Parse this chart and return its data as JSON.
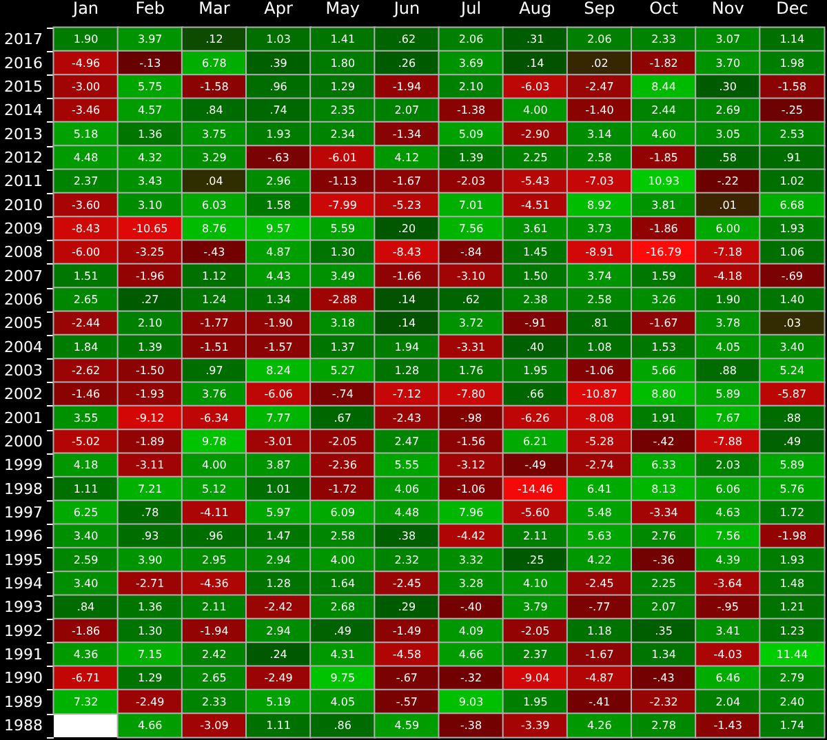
{
  "chart_data": {
    "type": "heatmap",
    "categories": [
      "Jan",
      "Feb",
      "Mar",
      "Apr",
      "May",
      "Jun",
      "Jul",
      "Aug",
      "Sep",
      "Oct",
      "Nov",
      "Dec"
    ],
    "y_categories": [
      "2017",
      "2016",
      "2015",
      "2014",
      "2013",
      "2012",
      "2011",
      "2010",
      "2009",
      "2008",
      "2007",
      "2006",
      "2005",
      "2004",
      "2003",
      "2002",
      "2001",
      "2000",
      "1999",
      "1998",
      "1997",
      "1996",
      "1995",
      "1994",
      "1993",
      "1992",
      "1991",
      "1990",
      "1989",
      "1988"
    ],
    "cells": [
      [
        1.9,
        3.97,
        0.12,
        1.03,
        1.41,
        0.62,
        2.06,
        0.31,
        2.06,
        2.33,
        3.07,
        1.14
      ],
      [
        -4.96,
        -0.13,
        6.78,
        0.39,
        1.8,
        0.26,
        3.69,
        0.14,
        0.02,
        -1.82,
        3.7,
        1.98
      ],
      [
        -3.0,
        5.75,
        -1.58,
        0.96,
        1.29,
        -1.94,
        2.1,
        -6.03,
        -2.47,
        8.44,
        0.3,
        -1.58
      ],
      [
        -3.46,
        4.57,
        0.84,
        0.74,
        2.35,
        2.07,
        -1.38,
        4.0,
        -1.4,
        2.44,
        2.69,
        -0.25
      ],
      [
        5.18,
        1.36,
        3.75,
        1.93,
        2.34,
        -1.34,
        5.09,
        -2.9,
        3.14,
        4.6,
        3.05,
        2.53
      ],
      [
        4.48,
        4.32,
        3.29,
        -0.63,
        -6.01,
        4.12,
        1.39,
        2.25,
        2.58,
        -1.85,
        0.58,
        0.91
      ],
      [
        2.37,
        3.43,
        0.04,
        2.96,
        -1.13,
        -1.67,
        -2.03,
        -5.43,
        -7.03,
        10.93,
        -0.22,
        1.02
      ],
      [
        -3.6,
        3.1,
        6.03,
        1.58,
        -7.99,
        -5.23,
        7.01,
        -4.51,
        8.92,
        3.81,
        0.01,
        6.68
      ],
      [
        -8.43,
        -10.65,
        8.76,
        9.57,
        5.59,
        0.2,
        7.56,
        3.61,
        3.73,
        -1.86,
        6.0,
        1.93
      ],
      [
        -6.0,
        -3.25,
        -0.43,
        4.87,
        1.3,
        -8.43,
        -0.84,
        1.45,
        -8.91,
        -16.79,
        -7.18,
        1.06
      ],
      [
        1.51,
        -1.96,
        1.12,
        4.43,
        3.49,
        -1.66,
        -3.1,
        1.5,
        3.74,
        1.59,
        -4.18,
        -0.69
      ],
      [
        2.65,
        0.27,
        1.24,
        1.34,
        -2.88,
        0.14,
        0.62,
        2.38,
        2.58,
        3.26,
        1.9,
        1.4
      ],
      [
        -2.44,
        2.1,
        -1.77,
        -1.9,
        3.18,
        0.14,
        3.72,
        -0.91,
        0.81,
        -1.67,
        3.78,
        0.03
      ],
      [
        1.84,
        1.39,
        -1.51,
        -1.57,
        1.37,
        1.94,
        -3.31,
        0.4,
        1.08,
        1.53,
        4.05,
        3.4
      ],
      [
        -2.62,
        -1.5,
        0.97,
        8.24,
        5.27,
        1.28,
        1.76,
        1.95,
        -1.06,
        5.66,
        0.88,
        5.24
      ],
      [
        -1.46,
        -1.93,
        3.76,
        -6.06,
        -0.74,
        -7.12,
        -7.8,
        0.66,
        -10.87,
        8.8,
        5.89,
        -5.87
      ],
      [
        3.55,
        -9.12,
        -6.34,
        7.77,
        0.67,
        -2.43,
        -0.98,
        -6.26,
        -8.08,
        1.91,
        7.67,
        0.88
      ],
      [
        -5.02,
        -1.89,
        9.78,
        -3.01,
        -2.05,
        2.47,
        -1.56,
        6.21,
        -5.28,
        -0.42,
        -7.88,
        0.49
      ],
      [
        4.18,
        -3.11,
        4.0,
        3.87,
        -2.36,
        5.55,
        -3.12,
        -0.49,
        -2.74,
        6.33,
        2.03,
        5.89
      ],
      [
        1.11,
        7.21,
        5.12,
        1.01,
        -1.72,
        4.06,
        -1.06,
        -14.46,
        6.41,
        8.13,
        6.06,
        5.76
      ],
      [
        6.25,
        0.78,
        -4.11,
        5.97,
        6.09,
        4.48,
        7.96,
        -5.6,
        5.48,
        -3.34,
        4.63,
        1.72
      ],
      [
        3.4,
        0.93,
        0.96,
        1.47,
        2.58,
        0.38,
        -4.42,
        2.11,
        5.63,
        2.76,
        7.56,
        -1.98
      ],
      [
        2.59,
        3.9,
        2.95,
        2.94,
        4.0,
        2.32,
        3.32,
        0.25,
        4.22,
        -0.36,
        4.39,
        1.93
      ],
      [
        3.4,
        -2.71,
        -4.36,
        1.28,
        1.64,
        -2.45,
        3.28,
        4.1,
        -2.45,
        2.25,
        -3.64,
        1.48
      ],
      [
        0.84,
        1.36,
        2.11,
        -2.42,
        2.68,
        0.29,
        -0.4,
        3.79,
        -0.77,
        2.07,
        -0.95,
        1.21
      ],
      [
        -1.86,
        1.3,
        -1.94,
        2.94,
        0.49,
        -1.49,
        4.09,
        -2.05,
        1.18,
        0.35,
        3.41,
        1.23
      ],
      [
        4.36,
        7.15,
        2.42,
        0.24,
        4.31,
        -4.58,
        4.66,
        2.37,
        -1.67,
        1.34,
        -4.03,
        11.44
      ],
      [
        -6.71,
        1.29,
        2.65,
        -2.49,
        9.75,
        -0.67,
        -0.32,
        -9.04,
        -4.87,
        -0.43,
        6.46,
        2.79
      ],
      [
        7.32,
        -2.49,
        2.33,
        5.19,
        4.05,
        -0.57,
        9.03,
        1.95,
        -0.41,
        -2.32,
        2.04,
        2.4
      ],
      [
        null,
        4.66,
        -3.09,
        1.11,
        0.86,
        4.59,
        -0.38,
        -3.39,
        4.26,
        2.78,
        -1.43,
        1.74
      ]
    ],
    "cell_labels": [
      [
        "1.90",
        "3.97",
        ".12",
        "1.03",
        "1.41",
        ".62",
        "2.06",
        ".31",
        "2.06",
        "2.33",
        "3.07",
        "1.14"
      ],
      [
        "-4.96",
        "-.13",
        "6.78",
        ".39",
        "1.80",
        ".26",
        "3.69",
        ".14",
        ".02",
        "-1.82",
        "3.70",
        "1.98"
      ],
      [
        "-3.00",
        "5.75",
        "-1.58",
        ".96",
        "1.29",
        "-1.94",
        "2.10",
        "-6.03",
        "-2.47",
        "8.44",
        ".30",
        "-1.58"
      ],
      [
        "-3.46",
        "4.57",
        ".84",
        ".74",
        "2.35",
        "2.07",
        "-1.38",
        "4.00",
        "-1.40",
        "2.44",
        "2.69",
        "-.25"
      ],
      [
        "5.18",
        "1.36",
        "3.75",
        "1.93",
        "2.34",
        "-1.34",
        "5.09",
        "-2.90",
        "3.14",
        "4.60",
        "3.05",
        "2.53"
      ],
      [
        "4.48",
        "4.32",
        "3.29",
        "-.63",
        "-6.01",
        "4.12",
        "1.39",
        "2.25",
        "2.58",
        "-1.85",
        ".58",
        ".91"
      ],
      [
        "2.37",
        "3.43",
        ".04",
        "2.96",
        "-1.13",
        "-1.67",
        "-2.03",
        "-5.43",
        "-7.03",
        "10.93",
        "-.22",
        "1.02"
      ],
      [
        "-3.60",
        "3.10",
        "6.03",
        "1.58",
        "-7.99",
        "-5.23",
        "7.01",
        "-4.51",
        "8.92",
        "3.81",
        ".01",
        "6.68"
      ],
      [
        "-8.43",
        "-10.65",
        "8.76",
        "9.57",
        "5.59",
        ".20",
        "7.56",
        "3.61",
        "3.73",
        "-1.86",
        "6.00",
        "1.93"
      ],
      [
        "-6.00",
        "-3.25",
        "-.43",
        "4.87",
        "1.30",
        "-8.43",
        "-.84",
        "1.45",
        "-8.91",
        "-16.79",
        "-7.18",
        "1.06"
      ],
      [
        "1.51",
        "-1.96",
        "1.12",
        "4.43",
        "3.49",
        "-1.66",
        "-3.10",
        "1.50",
        "3.74",
        "1.59",
        "-4.18",
        "-.69"
      ],
      [
        "2.65",
        ".27",
        "1.24",
        "1.34",
        "-2.88",
        ".14",
        ".62",
        "2.38",
        "2.58",
        "3.26",
        "1.90",
        "1.40"
      ],
      [
        "-2.44",
        "2.10",
        "-1.77",
        "-1.90",
        "3.18",
        ".14",
        "3.72",
        "-.91",
        ".81",
        "-1.67",
        "3.78",
        ".03"
      ],
      [
        "1.84",
        "1.39",
        "-1.51",
        "-1.57",
        "1.37",
        "1.94",
        "-3.31",
        ".40",
        "1.08",
        "1.53",
        "4.05",
        "3.40"
      ],
      [
        "-2.62",
        "-1.50",
        ".97",
        "8.24",
        "5.27",
        "1.28",
        "1.76",
        "1.95",
        "-1.06",
        "5.66",
        ".88",
        "5.24"
      ],
      [
        "-1.46",
        "-1.93",
        "3.76",
        "-6.06",
        "-.74",
        "-7.12",
        "-7.80",
        ".66",
        "-10.87",
        "8.80",
        "5.89",
        "-5.87"
      ],
      [
        "3.55",
        "-9.12",
        "-6.34",
        "7.77",
        ".67",
        "-2.43",
        "-.98",
        "-6.26",
        "-8.08",
        "1.91",
        "7.67",
        ".88"
      ],
      [
        "-5.02",
        "-1.89",
        "9.78",
        "-3.01",
        "-2.05",
        "2.47",
        "-1.56",
        "6.21",
        "-5.28",
        "-.42",
        "-7.88",
        ".49"
      ],
      [
        "4.18",
        "-3.11",
        "4.00",
        "3.87",
        "-2.36",
        "5.55",
        "-3.12",
        "-.49",
        "-2.74",
        "6.33",
        "2.03",
        "5.89"
      ],
      [
        "1.11",
        "7.21",
        "5.12",
        "1.01",
        "-1.72",
        "4.06",
        "-1.06",
        "-14.46",
        "6.41",
        "8.13",
        "6.06",
        "5.76"
      ],
      [
        "6.25",
        ".78",
        "-4.11",
        "5.97",
        "6.09",
        "4.48",
        "7.96",
        "-5.60",
        "5.48",
        "-3.34",
        "4.63",
        "1.72"
      ],
      [
        "3.40",
        ".93",
        ".96",
        "1.47",
        "2.58",
        ".38",
        "-4.42",
        "2.11",
        "5.63",
        "2.76",
        "7.56",
        "-1.98"
      ],
      [
        "2.59",
        "3.90",
        "2.95",
        "2.94",
        "4.00",
        "2.32",
        "3.32",
        ".25",
        "4.22",
        "-.36",
        "4.39",
        "1.93"
      ],
      [
        "3.40",
        "-2.71",
        "-4.36",
        "1.28",
        "1.64",
        "-2.45",
        "3.28",
        "4.10",
        "-2.45",
        "2.25",
        "-3.64",
        "1.48"
      ],
      [
        ".84",
        "1.36",
        "2.11",
        "-2.42",
        "2.68",
        ".29",
        "-.40",
        "3.79",
        "-.77",
        "2.07",
        "-.95",
        "1.21"
      ],
      [
        "-1.86",
        "1.30",
        "-1.94",
        "2.94",
        ".49",
        "-1.49",
        "4.09",
        "-2.05",
        "1.18",
        ".35",
        "3.41",
        "1.23"
      ],
      [
        "4.36",
        "7.15",
        "2.42",
        ".24",
        "4.31",
        "-4.58",
        "4.66",
        "2.37",
        "-1.67",
        "1.34",
        "-4.03",
        "11.44"
      ],
      [
        "-6.71",
        "1.29",
        "2.65",
        "-2.49",
        "9.75",
        "-.67",
        "-.32",
        "-9.04",
        "-4.87",
        "-.43",
        "6.46",
        "2.79"
      ],
      [
        "7.32",
        "-2.49",
        "2.33",
        "5.19",
        "4.05",
        "-.57",
        "9.03",
        "1.95",
        "-.41",
        "-2.32",
        "2.04",
        "2.40"
      ],
      [
        null,
        "4.66",
        "-3.09",
        "1.11",
        ".86",
        "4.59",
        "-.38",
        "-3.39",
        "4.26",
        "2.78",
        "-1.43",
        "1.74"
      ]
    ]
  }
}
